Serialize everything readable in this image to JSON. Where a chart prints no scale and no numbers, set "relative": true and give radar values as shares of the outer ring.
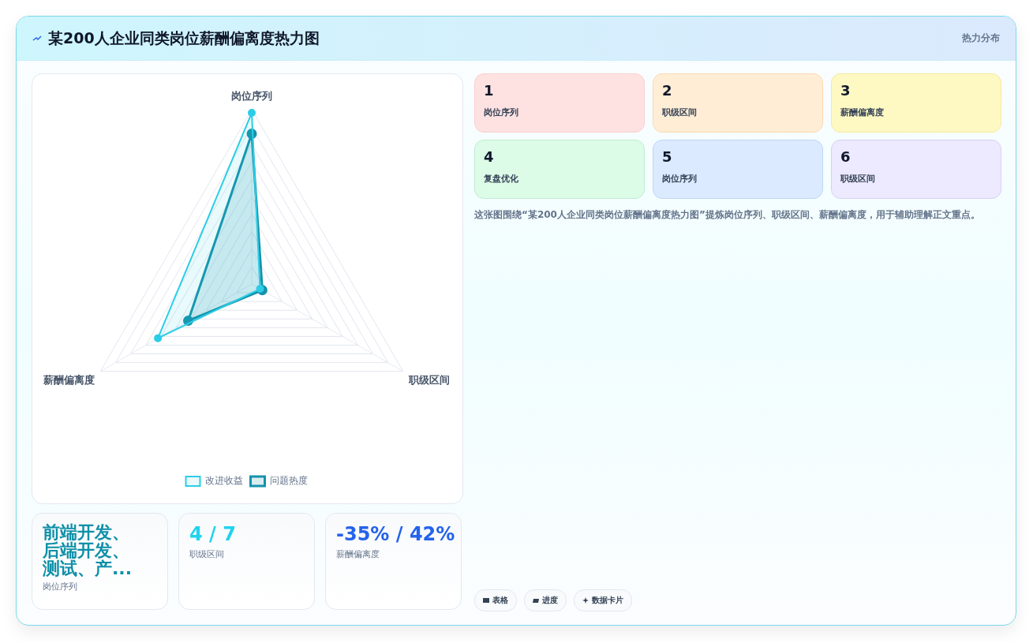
{
  "chart_data": {
    "type": "radar",
    "title": "某200人企业同类岗位薪酬偏离度热力图",
    "subtitle": "热力分布",
    "categories": [
      "岗位序列",
      "职级区间",
      "薪酬偏离度"
    ],
    "relative": true,
    "series": [
      {
        "name": "问题热度",
        "color": "#1492ab",
        "values": [
          0.86,
          0.07,
          0.42
        ]
      },
      {
        "name": "改进收益",
        "color": "#2ccde6",
        "values": [
          0.98,
          0.055,
          0.62
        ]
      }
    ],
    "legend": "bottom",
    "grid": true,
    "marker": "circle",
    "annotations": [
      "1",
      "岗位序列",
      "2",
      "职级区间",
      "3",
      "薪酬偏离度",
      "4",
      "复盘优化",
      "5",
      "岗位序列",
      "6",
      "职级区间",
      "这张图围绕“某200人企业同类岗位薪酬偏离度热力图”提炼岗位序列、职级区间、薪酬偏离度，用于辅助理解正文重点。",
      "前端开发、后端开发、测试、产...",
      "岗位序列",
      "4 / 7",
      "职级区间",
      "-35% / 42%",
      "薪酬偏离度",
      "表格",
      "进度",
      "数据卡片"
    ]
  }
}
